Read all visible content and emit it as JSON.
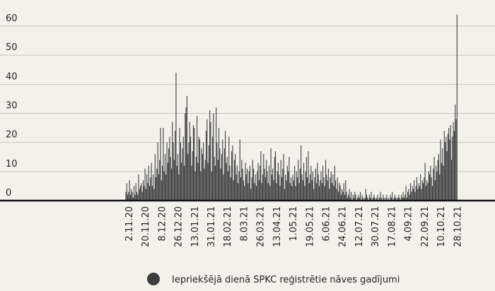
{
  "chart_data": {
    "type": "bar",
    "categories": [
      null,
      null,
      null,
      "2.11.20",
      null,
      null,
      null,
      null,
      null,
      null,
      null,
      null,
      null,
      null,
      null,
      null,
      null,
      null,
      null,
      null,
      null,
      "20.11.20",
      null,
      null,
      null,
      null,
      null,
      null,
      null,
      null,
      null,
      null,
      null,
      null,
      null,
      null,
      null,
      null,
      null,
      "8.12.20",
      null,
      null,
      null,
      null,
      null,
      null,
      null,
      null,
      null,
      null,
      null,
      null,
      null,
      null,
      null,
      null,
      null,
      "26.12.20",
      null,
      null,
      null,
      null,
      null,
      null,
      null,
      null,
      null,
      null,
      null,
      null,
      null,
      null,
      null,
      null,
      null,
      "13.01.21",
      null,
      null,
      null,
      null,
      null,
      null,
      null,
      null,
      null,
      null,
      null,
      null,
      null,
      null,
      null,
      null,
      null,
      "31.01.21",
      null,
      null,
      null,
      null,
      null,
      null,
      null,
      null,
      null,
      null,
      null,
      null,
      null,
      null,
      null,
      null,
      null,
      "18.02.21",
      null,
      null,
      null,
      null,
      null,
      null,
      null,
      null,
      null,
      null,
      null,
      null,
      null,
      null,
      null,
      null,
      null,
      "8.03.21",
      null,
      null,
      null,
      null,
      null,
      null,
      null,
      null,
      null,
      null,
      null,
      null,
      null,
      null,
      null,
      null,
      null,
      "26.03.21",
      null,
      null,
      null,
      null,
      null,
      null,
      null,
      null,
      null,
      null,
      null,
      null,
      null,
      null,
      null,
      null,
      null,
      "13.04.21",
      null,
      null,
      null,
      null,
      null,
      null,
      null,
      null,
      null,
      null,
      null,
      null,
      null,
      null,
      null,
      null,
      null,
      "1.05.21",
      null,
      null,
      null,
      null,
      null,
      null,
      null,
      null,
      null,
      null,
      null,
      null,
      null,
      null,
      null,
      null,
      null,
      "19.05.21",
      null,
      null,
      null,
      null,
      null,
      null,
      null,
      null,
      null,
      null,
      null,
      null,
      null,
      null,
      null,
      null,
      null,
      "6.06.21",
      null,
      null,
      null,
      null,
      null,
      null,
      null,
      null,
      null,
      null,
      null,
      null,
      null,
      null,
      null,
      null,
      null,
      "24.06.21",
      null,
      null,
      null,
      null,
      null,
      null,
      null,
      null,
      null,
      null,
      null,
      null,
      null,
      null,
      null,
      null,
      null,
      "12.07.21",
      null,
      null,
      null,
      null,
      null,
      null,
      null,
      null,
      null,
      null,
      null,
      null,
      null,
      null,
      null,
      null,
      null,
      "30.07.21",
      null,
      null,
      null,
      null,
      null,
      null,
      null,
      null,
      null,
      null,
      null,
      null,
      null,
      null,
      null,
      null,
      null,
      "17.08.21",
      null,
      null,
      null,
      null,
      null,
      null,
      null,
      null,
      null,
      null,
      null,
      null,
      null,
      null,
      null,
      null,
      null,
      "4.09.21",
      null,
      null,
      null,
      null,
      null,
      null,
      null,
      null,
      null,
      null,
      null,
      null,
      null,
      null,
      null,
      null,
      null,
      "22.09.21",
      null,
      null,
      null,
      null,
      null,
      null,
      null,
      null,
      null,
      null,
      null,
      null,
      null,
      null,
      null,
      null,
      null,
      "10.10.21",
      null,
      null,
      null,
      null,
      null,
      null,
      null,
      null,
      null,
      null,
      null,
      null,
      null,
      null,
      null,
      null,
      null,
      "28.10.21"
    ],
    "series": [
      {
        "name": "Iepriekšējā dienā SPKC reģistrētie nāves gadījumi",
        "color": "#3d3d3d",
        "values": [
          3,
          6,
          2,
          3,
          7,
          2,
          4,
          3,
          1,
          5,
          2,
          6,
          3,
          2,
          9,
          4,
          5,
          6,
          3,
          7,
          5,
          11,
          4,
          9,
          6,
          12,
          5,
          8,
          13,
          5,
          9,
          4,
          16,
          8,
          11,
          20,
          9,
          14,
          25,
          7,
          12,
          25,
          10,
          16,
          9,
          20,
          13,
          18,
          22,
          15,
          11,
          27,
          20,
          14,
          24,
          44,
          12,
          16,
          9,
          25,
          20,
          13,
          18,
          22,
          12,
          30,
          32,
          36,
          16,
          20,
          27,
          22,
          12,
          17,
          26,
          25,
          10,
          15,
          29,
          13,
          22,
          21,
          10,
          18,
          16,
          20,
          11,
          14,
          24,
          28,
          13,
          19,
          31,
          27,
          10,
          22,
          30,
          15,
          12,
          32,
          20,
          14,
          25,
          18,
          11,
          16,
          21,
          9,
          18,
          24,
          13,
          15,
          10,
          22,
          12,
          8,
          17,
          19,
          7,
          14,
          16,
          9,
          12,
          6,
          10,
          21,
          8,
          14,
          11,
          7,
          5,
          13,
          9,
          11,
          6,
          10,
          12,
          4,
          8,
          14,
          11,
          6,
          9,
          5,
          10,
          13,
          7,
          12,
          17,
          6,
          9,
          16,
          11,
          8,
          14,
          10,
          6,
          12,
          5,
          18,
          9,
          11,
          7,
          15,
          17,
          6,
          10,
          13,
          9,
          5,
          14,
          8,
          11,
          16,
          4,
          9,
          7,
          12,
          10,
          15,
          6,
          8,
          5,
          9,
          7,
          12,
          5,
          10,
          8,
          14,
          6,
          11,
          19,
          9,
          7,
          13,
          5,
          10,
          15,
          8,
          17,
          6,
          9,
          12,
          7,
          10,
          4,
          8,
          11,
          6,
          13,
          9,
          5,
          7,
          10,
          6,
          12,
          8,
          5,
          14,
          9,
          7,
          11,
          4,
          8,
          10,
          6,
          9,
          5,
          12,
          7,
          4,
          8,
          3,
          6,
          5,
          2,
          4,
          3,
          6,
          2,
          7,
          3,
          1,
          2,
          4,
          1,
          3,
          0,
          2,
          1,
          3,
          2,
          0,
          1,
          2,
          1,
          3,
          0,
          2,
          1,
          0,
          1,
          4,
          2,
          1,
          0,
          2,
          1,
          3,
          0,
          1,
          2,
          1,
          0,
          1,
          2,
          0,
          1,
          3,
          1,
          0,
          2,
          1,
          0,
          1,
          2,
          0,
          1,
          0,
          2,
          1,
          3,
          0,
          1,
          2,
          1,
          0,
          1,
          2,
          1,
          0,
          2,
          1,
          3,
          1,
          2,
          5,
          1,
          3,
          4,
          2,
          6,
          3,
          5,
          4,
          7,
          3,
          5,
          8,
          4,
          6,
          5,
          9,
          4,
          7,
          6,
          8,
          13,
          5,
          7,
          6,
          10,
          9,
          12,
          8,
          5,
          11,
          15,
          7,
          12,
          10,
          14,
          16,
          9,
          21,
          13,
          18,
          12,
          24,
          20,
          22,
          17,
          23,
          25,
          21,
          26,
          14,
          22,
          27,
          24,
          33,
          28,
          64
        ]
      }
    ],
    "ylim": [
      0,
      65
    ],
    "yticks": [
      0,
      10,
      20,
      30,
      40,
      50,
      60
    ],
    "grid": true
  }
}
